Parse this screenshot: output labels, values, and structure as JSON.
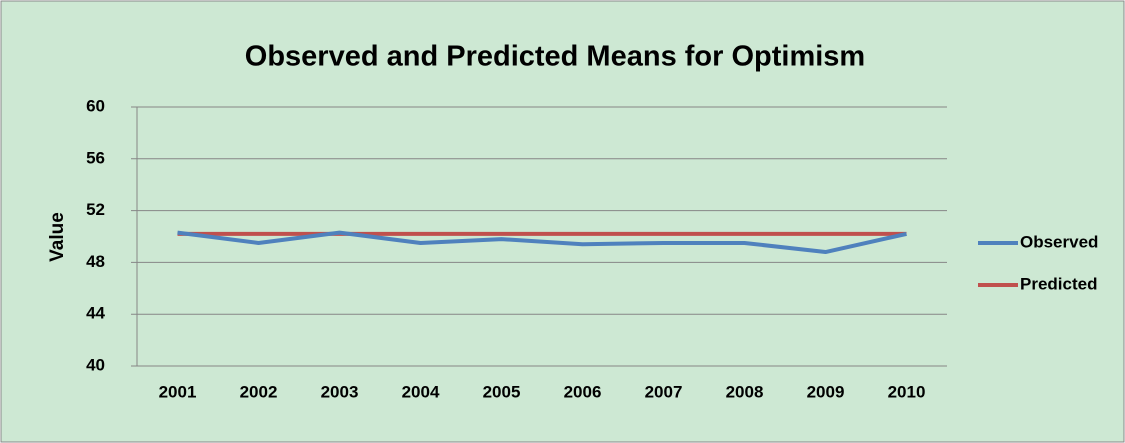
{
  "chart_data": {
    "type": "line",
    "title": "Observed and Predicted Means for Optimism",
    "y_label": "Value",
    "categories": [
      "2001",
      "2002",
      "2003",
      "2004",
      "2005",
      "2006",
      "2007",
      "2008",
      "2009",
      "2010"
    ],
    "series": [
      {
        "name": "Observed",
        "color": "#4f81bd",
        "values": [
          50.3,
          49.5,
          50.3,
          49.5,
          49.8,
          49.4,
          49.5,
          49.5,
          48.8,
          50.2
        ]
      },
      {
        "name": "Predicted",
        "color": "#c0504d",
        "values": [
          50.2,
          50.2,
          50.2,
          50.2,
          50.2,
          50.2,
          50.2,
          50.2,
          50.2,
          50.2
        ]
      }
    ],
    "ylim": [
      40,
      60
    ],
    "yticks": [
      40,
      44,
      48,
      52,
      56,
      60
    ],
    "grid": true,
    "legend": "right"
  }
}
